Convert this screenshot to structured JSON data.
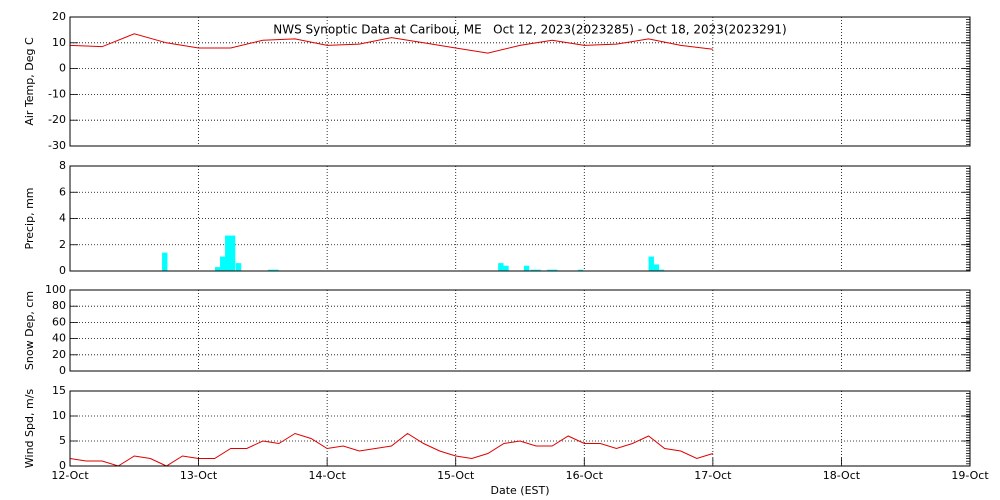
{
  "chart_data": [
    {
      "type": "line",
      "title": "NWS Synoptic Data at Caribou, ME   Oct 12, 2023(2023285) - Oct 18, 2023(2023291)",
      "ylabel": "Air Temp, Deg C",
      "ylim": [
        -30,
        20
      ],
      "yticks": [
        -30,
        -20,
        -10,
        0,
        10,
        20
      ],
      "grid": true,
      "series": [
        {
          "color": "#e00000",
          "x": [
            0,
            0.25,
            0.5,
            0.75,
            1.0,
            1.25,
            1.5,
            1.75,
            2.0,
            2.25,
            2.5,
            2.75,
            3.0,
            3.25,
            3.5,
            3.75,
            4.0,
            4.25,
            4.5,
            4.75,
            5.0
          ],
          "values": [
            9,
            8.5,
            13.5,
            10,
            8,
            8,
            11,
            11.5,
            9,
            9.5,
            12,
            10,
            8,
            6,
            9,
            11,
            9,
            9.5,
            11.5,
            9,
            7.5
          ]
        }
      ]
    },
    {
      "type": "bar",
      "ylabel": "Precip, mm",
      "ylim": [
        0,
        8
      ],
      "yticks": [
        0,
        2,
        4,
        6,
        8
      ],
      "grid": true,
      "series": [
        {
          "color": "#00ffff",
          "x": [
            0.716,
            1.128,
            1.167,
            1.206,
            1.244,
            1.29,
            1.54,
            1.58,
            3.33,
            3.37,
            3.53,
            3.58,
            3.62,
            3.71,
            3.75,
            3.95,
            4.5,
            4.54,
            4.58
          ],
          "values": [
            1.4,
            0.3,
            1.1,
            2.7,
            2.7,
            0.6,
            0.1,
            0.1,
            0.6,
            0.4,
            0.4,
            0.1,
            0.1,
            0.1,
            0.1,
            0.1,
            1.1,
            0.5,
            0.1
          ]
        }
      ]
    },
    {
      "type": "line",
      "ylabel": "Snow Dep, cm",
      "ylim": [
        0,
        100
      ],
      "yticks": [
        0,
        20,
        40,
        60,
        80,
        100
      ],
      "grid": true,
      "series": []
    },
    {
      "type": "line",
      "ylabel": "Wind Spd, m/s",
      "xlabel": "Date (EST)",
      "ylim": [
        0,
        15
      ],
      "yticks": [
        0,
        5,
        10,
        15
      ],
      "grid": true,
      "xlim": [
        0,
        7
      ],
      "xticks": [
        {
          "value": 0,
          "label": "12-Oct"
        },
        {
          "value": 1,
          "label": "13-Oct"
        },
        {
          "value": 2,
          "label": "14-Oct"
        },
        {
          "value": 3,
          "label": "15-Oct"
        },
        {
          "value": 4,
          "label": "16-Oct"
        },
        {
          "value": 5,
          "label": "17-Oct"
        },
        {
          "value": 6,
          "label": "18-Oct"
        },
        {
          "value": 7,
          "label": "19-Oct"
        }
      ],
      "series": [
        {
          "color": "#e00000",
          "x": [
            0,
            0.125,
            0.25,
            0.375,
            0.5,
            0.625,
            0.75,
            0.875,
            1.0,
            1.125,
            1.25,
            1.375,
            1.5,
            1.625,
            1.75,
            1.875,
            2.0,
            2.125,
            2.25,
            2.375,
            2.5,
            2.625,
            2.75,
            2.875,
            3.0,
            3.125,
            3.25,
            3.375,
            3.5,
            3.625,
            3.75,
            3.875,
            4.0,
            4.125,
            4.25,
            4.375,
            4.5,
            4.625,
            4.75,
            4.875,
            5.0
          ],
          "values": [
            1.5,
            1,
            1,
            0,
            2,
            1.5,
            0,
            2,
            1.5,
            1.5,
            3.5,
            3.5,
            5,
            4.5,
            6.5,
            5.5,
            3.5,
            4,
            3,
            3.5,
            4,
            6.5,
            4.5,
            3,
            2,
            1.5,
            2.5,
            4.5,
            5,
            4,
            4,
            6,
            4.5,
            4.5,
            3.5,
            4.5,
            6,
            3.5,
            3,
            1.5,
            2.5
          ]
        }
      ]
    }
  ]
}
